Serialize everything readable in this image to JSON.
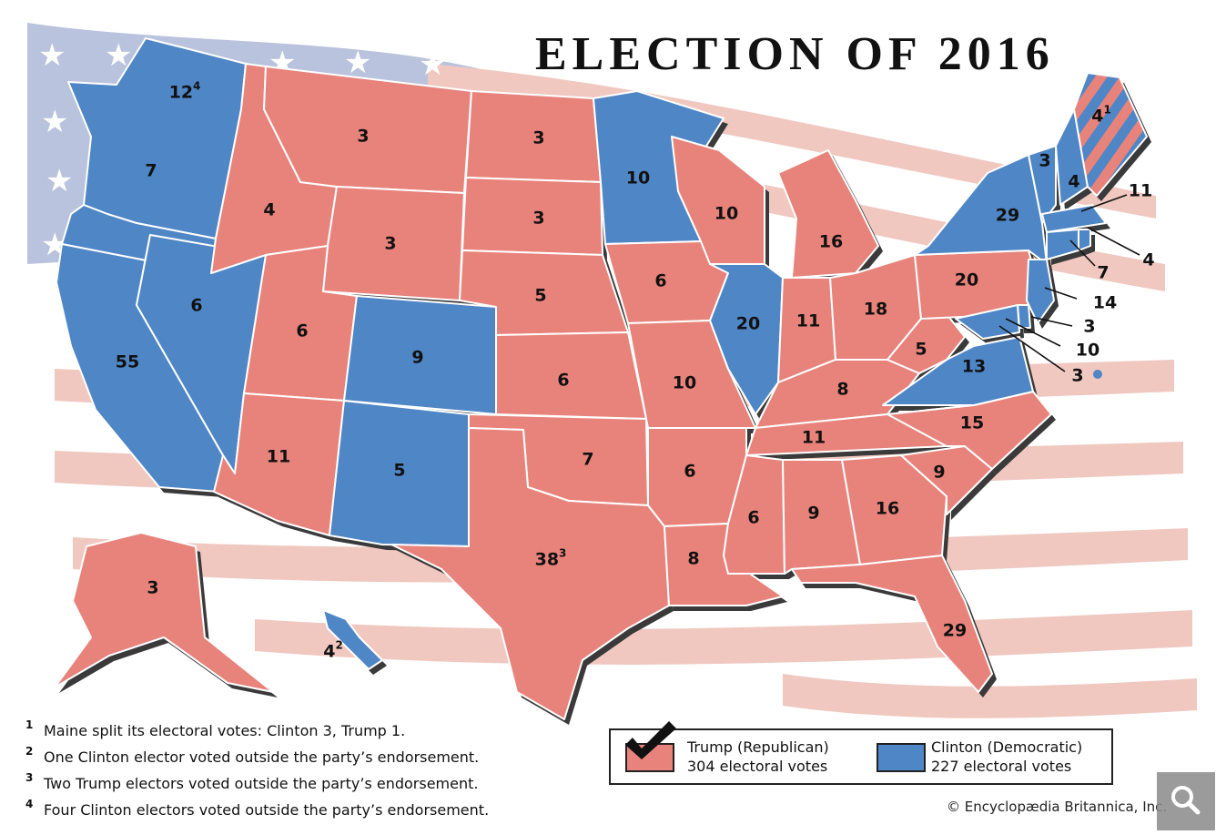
{
  "title": "ELECTION OF 2016",
  "colors": {
    "republican": "#e8837b",
    "democratic": "#4f86c6",
    "flag_stripe": "#f0c8c0",
    "flag_canton": "#b9c3dd",
    "border": "#ffffff",
    "shadow": "#3a3a3a"
  },
  "states": [
    {
      "id": "WA",
      "party": "D",
      "value": "12",
      "sup": "4"
    },
    {
      "id": "OR",
      "party": "D",
      "value": "7",
      "sup": ""
    },
    {
      "id": "CA",
      "party": "D",
      "value": "55",
      "sup": ""
    },
    {
      "id": "NV",
      "party": "D",
      "value": "6",
      "sup": ""
    },
    {
      "id": "ID",
      "party": "R",
      "value": "4",
      "sup": ""
    },
    {
      "id": "MT",
      "party": "R",
      "value": "3",
      "sup": ""
    },
    {
      "id": "WY",
      "party": "R",
      "value": "3",
      "sup": ""
    },
    {
      "id": "UT",
      "party": "R",
      "value": "6",
      "sup": ""
    },
    {
      "id": "AZ",
      "party": "R",
      "value": "11",
      "sup": ""
    },
    {
      "id": "CO",
      "party": "D",
      "value": "9",
      "sup": ""
    },
    {
      "id": "NM",
      "party": "D",
      "value": "5",
      "sup": ""
    },
    {
      "id": "ND",
      "party": "R",
      "value": "3",
      "sup": ""
    },
    {
      "id": "SD",
      "party": "R",
      "value": "3",
      "sup": ""
    },
    {
      "id": "NE",
      "party": "R",
      "value": "5",
      "sup": ""
    },
    {
      "id": "KS",
      "party": "R",
      "value": "6",
      "sup": ""
    },
    {
      "id": "OK",
      "party": "R",
      "value": "7",
      "sup": ""
    },
    {
      "id": "TX",
      "party": "R",
      "value": "38",
      "sup": "3"
    },
    {
      "id": "MN",
      "party": "D",
      "value": "10",
      "sup": ""
    },
    {
      "id": "IA",
      "party": "R",
      "value": "6",
      "sup": ""
    },
    {
      "id": "MO",
      "party": "R",
      "value": "10",
      "sup": ""
    },
    {
      "id": "AR",
      "party": "R",
      "value": "6",
      "sup": ""
    },
    {
      "id": "LA",
      "party": "R",
      "value": "8",
      "sup": ""
    },
    {
      "id": "WI",
      "party": "R",
      "value": "10",
      "sup": ""
    },
    {
      "id": "IL",
      "party": "D",
      "value": "20",
      "sup": ""
    },
    {
      "id": "MI",
      "party": "R",
      "value": "16",
      "sup": ""
    },
    {
      "id": "IN",
      "party": "R",
      "value": "11",
      "sup": ""
    },
    {
      "id": "OH",
      "party": "R",
      "value": "18",
      "sup": ""
    },
    {
      "id": "KY",
      "party": "R",
      "value": "8",
      "sup": ""
    },
    {
      "id": "TN",
      "party": "R",
      "value": "11",
      "sup": ""
    },
    {
      "id": "MS",
      "party": "R",
      "value": "6",
      "sup": ""
    },
    {
      "id": "AL",
      "party": "R",
      "value": "9",
      "sup": ""
    },
    {
      "id": "GA",
      "party": "R",
      "value": "16",
      "sup": ""
    },
    {
      "id": "FL",
      "party": "R",
      "value": "29",
      "sup": ""
    },
    {
      "id": "SC",
      "party": "R",
      "value": "9",
      "sup": ""
    },
    {
      "id": "NC",
      "party": "R",
      "value": "15",
      "sup": ""
    },
    {
      "id": "VA",
      "party": "D",
      "value": "13",
      "sup": ""
    },
    {
      "id": "WV",
      "party": "R",
      "value": "5",
      "sup": ""
    },
    {
      "id": "PA",
      "party": "R",
      "value": "20",
      "sup": ""
    },
    {
      "id": "NY",
      "party": "D",
      "value": "29",
      "sup": ""
    },
    {
      "id": "VT",
      "party": "D",
      "value": "3",
      "sup": ""
    },
    {
      "id": "NH",
      "party": "D",
      "value": "4",
      "sup": ""
    },
    {
      "id": "ME",
      "party": "split",
      "value": "4",
      "sup": "1"
    },
    {
      "id": "AK",
      "party": "R",
      "value": "3",
      "sup": ""
    },
    {
      "id": "HI",
      "party": "D",
      "value": "4",
      "sup": "2"
    }
  ],
  "callouts": [
    {
      "id": "MA",
      "party": "D",
      "value": "11"
    },
    {
      "id": "RI",
      "party": "D",
      "value": "4"
    },
    {
      "id": "CT",
      "party": "D",
      "value": "7"
    },
    {
      "id": "NJ",
      "party": "D",
      "value": "14"
    },
    {
      "id": "DE",
      "party": "D",
      "value": "3"
    },
    {
      "id": "MD",
      "party": "D",
      "value": "10"
    },
    {
      "id": "DC",
      "party": "D",
      "value": "3"
    }
  ],
  "footnotes": [
    {
      "num": "1",
      "text": "Maine split its electoral votes: Clinton 3, Trump 1."
    },
    {
      "num": "2",
      "text": "One Clinton elector voted outside the party’s endorsement."
    },
    {
      "num": "3",
      "text": "Two Trump electors voted outside the party’s endorsement."
    },
    {
      "num": "4",
      "text": "Four Clinton electors voted outside the party’s endorsement."
    }
  ],
  "legend": {
    "trump_name": "Trump (Republican)",
    "trump_votes": "304 electoral votes",
    "clinton_name": "Clinton (Democratic)",
    "clinton_votes": "227 electoral votes"
  },
  "copyright": "© Encyclopædia Britannica, Inc.",
  "icons": {
    "zoom": "search-icon",
    "winner": "checkmark-icon"
  }
}
